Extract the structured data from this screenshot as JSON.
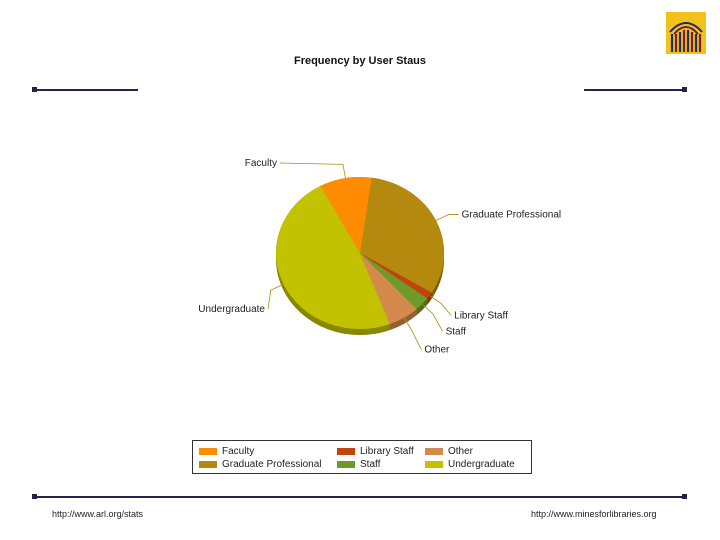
{
  "chart_data": {
    "type": "pie",
    "title": "Frequency by User Staus",
    "categories": [
      "Graduate Professional",
      "Library Staff",
      "Staff",
      "Other",
      "Undergraduate",
      "Faculty"
    ],
    "values": [
      31.5,
      1.5,
      3.0,
      6.0,
      48.0,
      10.0
    ],
    "colors": [
      "#b5880e",
      "#c0440e",
      "#6e9a2a",
      "#d48a4c",
      "#c2c200",
      "#ff8c00"
    ],
    "legend_position": "bottom"
  },
  "legend": {
    "items": [
      {
        "label": "Faculty",
        "color": "#ff8c00"
      },
      {
        "label": "Library Staff",
        "color": "#c0440e"
      },
      {
        "label": "Other",
        "color": "#d48a4c"
      },
      {
        "label": "Graduate Professional",
        "color": "#b5880e"
      },
      {
        "label": "Staff",
        "color": "#6e9a2a"
      },
      {
        "label": "Undergraduate",
        "color": "#c2c200"
      }
    ]
  },
  "footer": {
    "left_url": "http://www.arl.org/stats",
    "right_url": "http://www.minesforlibraries.org"
  },
  "logo": {
    "icon": "arches-logo-icon"
  }
}
